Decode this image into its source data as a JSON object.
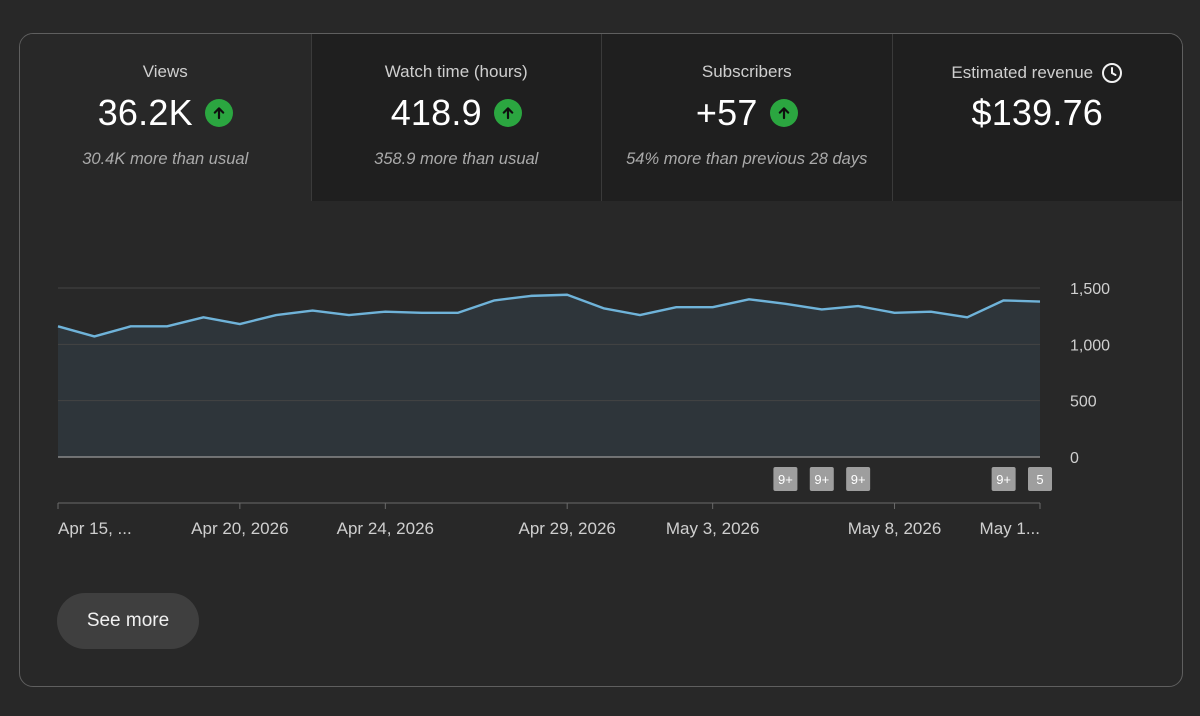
{
  "metrics": [
    {
      "label": "Views",
      "value": "36.2K",
      "trend_icon": "arrow-up-icon",
      "sub": "30.4K more than usual"
    },
    {
      "label": "Watch time (hours)",
      "value": "418.9",
      "trend_icon": "arrow-up-icon",
      "sub": "358.9 more than usual"
    },
    {
      "label": "Subscribers",
      "value": "+57",
      "trend_icon": "arrow-up-icon",
      "sub": "54% more than previous 28 days"
    },
    {
      "label": "Estimated revenue",
      "value": "$139.76",
      "info_icon": "clock-icon",
      "sub": ""
    }
  ],
  "colors": {
    "background": "#282828",
    "line": "#6fb3d9",
    "area": "#2e353a",
    "trend_up": "#2ba640",
    "badge": "#9e9e9e"
  },
  "chart_data": {
    "type": "area",
    "x": [
      "Apr 15, 2026",
      "Apr 16, 2026",
      "Apr 17, 2026",
      "Apr 18, 2026",
      "Apr 19, 2026",
      "Apr 20, 2026",
      "Apr 21, 2026",
      "Apr 22, 2026",
      "Apr 23, 2026",
      "Apr 24, 2026",
      "Apr 25, 2026",
      "Apr 26, 2026",
      "Apr 27, 2026",
      "Apr 28, 2026",
      "Apr 29, 2026",
      "Apr 30, 2026",
      "May 1, 2026",
      "May 2, 2026",
      "May 3, 2026",
      "May 4, 2026",
      "May 5, 2026",
      "May 6, 2026",
      "May 7, 2026",
      "May 8, 2026",
      "May 9, 2026",
      "May 10, 2026",
      "May 11, 2026",
      "May 12, 2026"
    ],
    "series": [
      {
        "values": [
          1160,
          1070,
          1160,
          1160,
          1240,
          1180,
          1260,
          1300,
          1260,
          1290,
          1280,
          1280,
          1390,
          1430,
          1440,
          1320,
          1260,
          1330,
          1330,
          1400,
          1360,
          1310,
          1340,
          1280,
          1290,
          1240,
          1390,
          1380
        ]
      }
    ],
    "ylim": [
      0,
      1500
    ],
    "yticks": [
      "0",
      "500",
      "1,000",
      "1,500"
    ],
    "ytick_values": [
      0,
      500,
      1000,
      1500
    ],
    "xtick_labels": [
      {
        "index": 0,
        "label": "Apr 15, ..."
      },
      {
        "index": 5,
        "label": "Apr 20, 2026"
      },
      {
        "index": 9,
        "label": "Apr 24, 2026"
      },
      {
        "index": 14,
        "label": "Apr 29, 2026"
      },
      {
        "index": 18,
        "label": "May 3, 2026"
      },
      {
        "index": 23,
        "label": "May 8, 2026"
      },
      {
        "index": 27,
        "label": "May 1..."
      }
    ],
    "markers": [
      {
        "index": 20,
        "label": "9+"
      },
      {
        "index": 21,
        "label": "9+"
      },
      {
        "index": 22,
        "label": "9+"
      },
      {
        "index": 26,
        "label": "9+"
      },
      {
        "index": 27,
        "label": "5"
      }
    ],
    "grid": true
  },
  "actions": {
    "see_more_label": "See more"
  }
}
